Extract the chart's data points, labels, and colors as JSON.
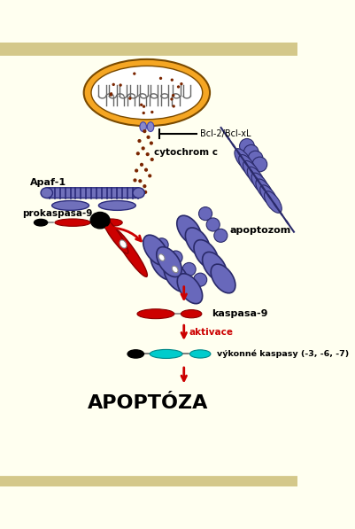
{
  "bg_color": "#fffff0",
  "border_color": "#d4c88a",
  "white_area": "#ffffff",
  "title": "APOPTÓZA",
  "title_fontsize": 16,
  "mito_color": "#f5a623",
  "cytc_color": "#7a2500",
  "apaf1_color": "#7070bb",
  "apaf1_stripe": "#2a2a7a",
  "red_color": "#cc0000",
  "cyan_color": "#00cccc",
  "apoptozom_color": "#6868bb",
  "apoptozom_dark": "#2a2a6a",
  "arrow_color": "#cc0000",
  "text_color": "#000000",
  "labels": {
    "bcl2": "Bcl-2/Bcl-xL",
    "cytc": "cytochrom c",
    "apaf1": "Apaf-1",
    "prokaspasa": "prokaspasa-9",
    "apoptozom": "apoptozom",
    "kaspasa": "kaspasa-9",
    "aktivace": "aktivace",
    "vykon": "výkonné kaspasy (-3, -6, -7)"
  }
}
